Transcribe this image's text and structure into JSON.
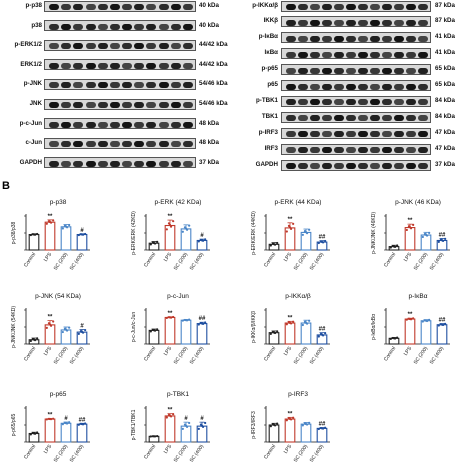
{
  "panel_a": {
    "blots_left": [
      {
        "label": "p-p38",
        "kda": "40 kDa"
      },
      {
        "label": "p38",
        "kda": "40 kDa"
      },
      {
        "label": "p-ERK1/2",
        "kda": "44/42 kDa"
      },
      {
        "label": "ERK1/2",
        "kda": "44/42 kDa"
      },
      {
        "label": "p-JNK",
        "kda": "54/46 kDa"
      },
      {
        "label": "JNK",
        "kda": "54/46 kDa"
      },
      {
        "label": "p-c-Jun",
        "kda": "48 kDa"
      },
      {
        "label": "c-Jun",
        "kda": "48 kDa"
      },
      {
        "label": "GAPDH",
        "kda": "37 kDa"
      }
    ],
    "blots_right": [
      {
        "label": "p-IKKα/β",
        "kda": "87 kDa"
      },
      {
        "label": "IKKβ",
        "kda": "87 kDa"
      },
      {
        "label": "p-IκBα",
        "kda": "41 kDa"
      },
      {
        "label": "IκBα",
        "kda": "41 kDa"
      },
      {
        "label": "p-p65",
        "kda": "65 kDa"
      },
      {
        "label": "p65",
        "kda": "65 kDa"
      },
      {
        "label": "p-TBK1",
        "kda": "84 kDa"
      },
      {
        "label": "TBK1",
        "kda": "84 kDa"
      },
      {
        "label": "p-IRF3",
        "kda": "47 kDa"
      },
      {
        "label": "IRF3",
        "kda": "47 kDa"
      },
      {
        "label": "GAPDH",
        "kda": "37 kDa"
      }
    ]
  },
  "panel_b": {
    "label": "B"
  },
  "colors": {
    "control": "#222222",
    "lps": "#c0392b",
    "sc200": "#4a86c8",
    "sc400": "#1f4fa0"
  },
  "chart_data": [
    {
      "type": "bar",
      "title": "p-p38",
      "ylabel": "p-p38/p38",
      "categories": [
        "Control",
        "LPS",
        "SC (200)",
        "SC (400)"
      ],
      "values": [
        1.0,
        1.8,
        1.5,
        1.0
      ],
      "ylim": [
        0,
        2.2
      ],
      "errors": [
        0.05,
        0.15,
        0.15,
        0.05
      ],
      "significance": [
        "",
        "**",
        "",
        "#"
      ]
    },
    {
      "type": "bar",
      "title": "p-ERK (42 KDa)",
      "ylabel": "p-ERK/ERK (42KD)",
      "categories": [
        "Control",
        "LPS",
        "SC (200)",
        "SC (400)"
      ],
      "values": [
        1.0,
        3.6,
        3.1,
        1.4
      ],
      "ylim": [
        0,
        5
      ],
      "errors": [
        0.25,
        0.8,
        0.6,
        0.2
      ],
      "significance": [
        "",
        "**",
        "",
        "#"
      ]
    },
    {
      "type": "bar",
      "title": "p-ERK (44 KDa)",
      "ylabel": "p-ERK/ERK (44KD)",
      "categories": [
        "Control",
        "LPS",
        "SC (200)",
        "SC (400)"
      ],
      "values": [
        1.0,
        3.9,
        3.1,
        1.4
      ],
      "ylim": [
        0,
        6
      ],
      "errors": [
        0.3,
        0.9,
        0.6,
        0.25
      ],
      "significance": [
        "",
        "**",
        "",
        "##"
      ]
    },
    {
      "type": "bar",
      "title": "p-JNK (46 KDa)",
      "ylabel": "p-JNK/JNK (46KD)",
      "categories": [
        "Control",
        "LPS",
        "SC (200)",
        "SC (400)"
      ],
      "values": [
        1.0,
        6.6,
        4.4,
        2.8
      ],
      "ylim": [
        0,
        10
      ],
      "errors": [
        0.4,
        1.0,
        0.8,
        0.6
      ],
      "significance": [
        "",
        "**",
        "",
        "##"
      ]
    },
    {
      "type": "bar",
      "title": "p-JNK (54 KDa)",
      "ylabel": "p-JNK/JNK (54KD)",
      "categories": [
        "Control",
        "LPS",
        "SC (200)",
        "SC (400)"
      ],
      "values": [
        1.0,
        4.5,
        3.3,
        2.8
      ],
      "ylim": [
        0,
        8
      ],
      "errors": [
        0.4,
        1.0,
        0.7,
        0.6
      ],
      "significance": [
        "",
        "**",
        "",
        "#"
      ]
    },
    {
      "type": "bar",
      "title": "p-c-Jun",
      "ylabel": "p-c-Jun/c-Jun",
      "categories": [
        "Control",
        "LPS",
        "SC (200)",
        "SC (400)"
      ],
      "values": [
        1.0,
        1.95,
        1.75,
        1.5
      ],
      "ylim": [
        0,
        2.5
      ],
      "errors": [
        0.1,
        0.05,
        0.05,
        0.1
      ],
      "significance": [
        "",
        "**",
        "",
        "##"
      ]
    },
    {
      "type": "bar",
      "title": "p-IKKα/β",
      "ylabel": "p-IKKα/β/IKKβ",
      "categories": [
        "Control",
        "LPS",
        "SC (200)",
        "SC (400)"
      ],
      "values": [
        1.0,
        1.85,
        1.85,
        0.8
      ],
      "ylim": [
        0,
        3
      ],
      "errors": [
        0.15,
        0.15,
        0.25,
        0.2
      ],
      "significance": [
        "",
        "**",
        "",
        "##"
      ]
    },
    {
      "type": "bar",
      "title": "p-IκBα",
      "ylabel": "p-IκBα/IκBα",
      "categories": [
        "Control",
        "LPS",
        "SC (200)",
        "SC (400)"
      ],
      "values": [
        1.0,
        4.4,
        4.1,
        3.4
      ],
      "ylim": [
        0,
        6
      ],
      "errors": [
        0.15,
        0.15,
        0.2,
        0.2
      ],
      "significance": [
        "",
        "**",
        "",
        "##"
      ]
    },
    {
      "type": "bar",
      "title": "p-p65",
      "ylabel": "p-p65/p65",
      "categories": [
        "Control",
        "LPS",
        "SC (200)",
        "SC (400)"
      ],
      "values": [
        1.0,
        2.7,
        2.2,
        2.1
      ],
      "ylim": [
        0,
        4
      ],
      "errors": [
        0.15,
        0.05,
        0.15,
        0.1
      ],
      "significance": [
        "",
        "**",
        "#",
        "##"
      ]
    },
    {
      "type": "bar",
      "title": "p-TBK1",
      "ylabel": "p-TBK1/TBK1",
      "categories": [
        "Control",
        "LPS",
        "SC (200)",
        "SC (400)"
      ],
      "values": [
        1.0,
        4.6,
        2.8,
        2.8
      ],
      "ylim": [
        0,
        6
      ],
      "errors": [
        0.05,
        0.4,
        0.7,
        0.7
      ],
      "significance": [
        "",
        "**",
        "#",
        "#"
      ]
    },
    {
      "type": "bar",
      "title": "p-IRF3",
      "ylabel": "p-IRF3/IRF3",
      "categories": [
        "Control",
        "LPS",
        "SC (200)",
        "SC (400)"
      ],
      "values": [
        1.0,
        1.35,
        1.05,
        0.8
      ],
      "ylim": [
        0,
        2
      ],
      "errors": [
        0.1,
        0.1,
        0.1,
        0.05
      ],
      "significance": [
        "",
        "**",
        "",
        "##"
      ]
    }
  ]
}
